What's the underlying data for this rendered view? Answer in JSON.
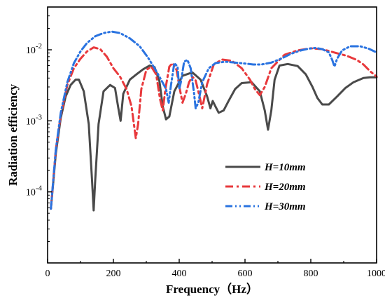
{
  "chart_data": {
    "type": "line",
    "xlabel": "Frequency（Hz）",
    "ylabel": "Radiation efficiency",
    "xlim": [
      0,
      1000
    ],
    "ylim": [
      1e-05,
      0.04
    ],
    "yscale": "log",
    "x_ticks": [
      0,
      200,
      400,
      600,
      800,
      1000
    ],
    "x_tick_labels": [
      "0",
      "200",
      "400",
      "600",
      "800",
      "1000"
    ],
    "y_ticks": [
      0.0001,
      0.001,
      0.01
    ],
    "y_tick_labels": [
      {
        "base": "10",
        "exp": "-4"
      },
      {
        "base": "10",
        "exp": "-3"
      },
      {
        "base": "10",
        "exp": "-2"
      }
    ],
    "legend_position": "center-right",
    "grid": false,
    "series": [
      {
        "name": "H=10mm",
        "color": "#4a4a4a",
        "dash": "solid",
        "points": [
          [
            10,
            5.8e-05
          ],
          [
            25,
            0.00035
          ],
          [
            40,
            0.0011
          ],
          [
            55,
            0.0022
          ],
          [
            70,
            0.0032
          ],
          [
            85,
            0.0038
          ],
          [
            95,
            0.0038
          ],
          [
            110,
            0.0026
          ],
          [
            125,
            0.0009
          ],
          [
            135,
            0.00015
          ],
          [
            140,
            5.5e-05
          ],
          [
            145,
            0.00015
          ],
          [
            155,
            0.0009
          ],
          [
            170,
            0.0026
          ],
          [
            190,
            0.0032
          ],
          [
            205,
            0.0029
          ],
          [
            215,
            0.0015
          ],
          [
            222,
            0.001
          ],
          [
            230,
            0.0024
          ],
          [
            250,
            0.0038
          ],
          [
            270,
            0.0045
          ],
          [
            290,
            0.0053
          ],
          [
            310,
            0.006
          ],
          [
            325,
            0.0057
          ],
          [
            340,
            0.0036
          ],
          [
            350,
            0.0016
          ],
          [
            360,
            0.00105
          ],
          [
            370,
            0.00115
          ],
          [
            385,
            0.0026
          ],
          [
            410,
            0.0043
          ],
          [
            440,
            0.0048
          ],
          [
            465,
            0.0038
          ],
          [
            485,
            0.0022
          ],
          [
            495,
            0.0015
          ],
          [
            502,
            0.0019
          ],
          [
            510,
            0.0016
          ],
          [
            520,
            0.0013
          ],
          [
            535,
            0.0014
          ],
          [
            550,
            0.0019
          ],
          [
            570,
            0.0028
          ],
          [
            590,
            0.0034
          ],
          [
            620,
            0.0035
          ],
          [
            645,
            0.0026
          ],
          [
            660,
            0.0014
          ],
          [
            670,
            0.00075
          ],
          [
            680,
            0.0014
          ],
          [
            690,
            0.0038
          ],
          [
            705,
            0.006
          ],
          [
            730,
            0.0063
          ],
          [
            760,
            0.0059
          ],
          [
            785,
            0.0045
          ],
          [
            805,
            0.003
          ],
          [
            820,
            0.0021
          ],
          [
            835,
            0.0017
          ],
          [
            855,
            0.0017
          ],
          [
            880,
            0.0022
          ],
          [
            905,
            0.0029
          ],
          [
            930,
            0.0035
          ],
          [
            960,
            0.004
          ],
          [
            980,
            0.0041
          ],
          [
            1000,
            0.0041
          ]
        ]
      },
      {
        "name": "H=20mm",
        "color": "#e8393c",
        "dash": "dashdot",
        "points": [
          [
            10,
            5.8e-05
          ],
          [
            25,
            0.0004
          ],
          [
            40,
            0.0012
          ],
          [
            60,
            0.0032
          ],
          [
            80,
            0.0055
          ],
          [
            100,
            0.0075
          ],
          [
            120,
            0.0095
          ],
          [
            140,
            0.0108
          ],
          [
            160,
            0.0102
          ],
          [
            180,
            0.008
          ],
          [
            200,
            0.0055
          ],
          [
            220,
            0.0042
          ],
          [
            240,
            0.0028
          ],
          [
            255,
            0.0016
          ],
          [
            268,
            0.00057
          ],
          [
            275,
            0.0009
          ],
          [
            285,
            0.0028
          ],
          [
            300,
            0.0052
          ],
          [
            315,
            0.0058
          ],
          [
            330,
            0.0045
          ],
          [
            342,
            0.002
          ],
          [
            350,
            0.0014
          ],
          [
            358,
            0.0028
          ],
          [
            370,
            0.0058
          ],
          [
            380,
            0.0065
          ],
          [
            392,
            0.0052
          ],
          [
            402,
            0.0028
          ],
          [
            410,
            0.0018
          ],
          [
            420,
            0.0024
          ],
          [
            430,
            0.0035
          ],
          [
            440,
            0.0042
          ],
          [
            450,
            0.0037
          ],
          [
            462,
            0.0022
          ],
          [
            470,
            0.0015
          ],
          [
            485,
            0.0033
          ],
          [
            505,
            0.0062
          ],
          [
            530,
            0.0073
          ],
          [
            560,
            0.007
          ],
          [
            590,
            0.0055
          ],
          [
            615,
            0.0038
          ],
          [
            630,
            0.0028
          ],
          [
            645,
            0.0023
          ],
          [
            660,
            0.003
          ],
          [
            680,
            0.0055
          ],
          [
            720,
            0.0085
          ],
          [
            760,
            0.0098
          ],
          [
            800,
            0.0105
          ],
          [
            835,
            0.0102
          ],
          [
            870,
            0.0092
          ],
          [
            910,
            0.0082
          ],
          [
            940,
            0.0072
          ],
          [
            960,
            0.0062
          ],
          [
            980,
            0.005
          ],
          [
            1000,
            0.0042
          ]
        ]
      },
      {
        "name": "H=30mm",
        "color": "#2a73e0",
        "dash": "dashdotdot",
        "points": [
          [
            10,
            5.8e-05
          ],
          [
            25,
            0.0004
          ],
          [
            40,
            0.0013
          ],
          [
            60,
            0.0035
          ],
          [
            80,
            0.0065
          ],
          [
            100,
            0.0095
          ],
          [
            120,
            0.0125
          ],
          [
            145,
            0.0155
          ],
          [
            170,
            0.0172
          ],
          [
            195,
            0.018
          ],
          [
            220,
            0.0172
          ],
          [
            250,
            0.0145
          ],
          [
            280,
            0.0112
          ],
          [
            305,
            0.0078
          ],
          [
            325,
            0.0055
          ],
          [
            345,
            0.0038
          ],
          [
            360,
            0.0028
          ],
          [
            368,
            0.0018
          ],
          [
            375,
            0.0032
          ],
          [
            385,
            0.0065
          ],
          [
            395,
            0.0058
          ],
          [
            400,
            0.0028
          ],
          [
            405,
            0.0035
          ],
          [
            415,
            0.0068
          ],
          [
            425,
            0.0072
          ],
          [
            435,
            0.0055
          ],
          [
            445,
            0.0025
          ],
          [
            450,
            0.0015
          ],
          [
            458,
            0.0018
          ],
          [
            470,
            0.0035
          ],
          [
            490,
            0.0055
          ],
          [
            510,
            0.0065
          ],
          [
            540,
            0.0068
          ],
          [
            570,
            0.0066
          ],
          [
            600,
            0.0064
          ],
          [
            625,
            0.0062
          ],
          [
            650,
            0.0062
          ],
          [
            680,
            0.0066
          ],
          [
            710,
            0.0075
          ],
          [
            740,
            0.0088
          ],
          [
            770,
            0.0098
          ],
          [
            795,
            0.0104
          ],
          [
            815,
            0.0106
          ],
          [
            835,
            0.0102
          ],
          [
            855,
            0.0092
          ],
          [
            865,
            0.0072
          ],
          [
            872,
            0.0058
          ],
          [
            880,
            0.0075
          ],
          [
            895,
            0.0098
          ],
          [
            920,
            0.0112
          ],
          [
            950,
            0.0112
          ],
          [
            975,
            0.0104
          ],
          [
            1000,
            0.0092
          ]
        ]
      }
    ]
  }
}
